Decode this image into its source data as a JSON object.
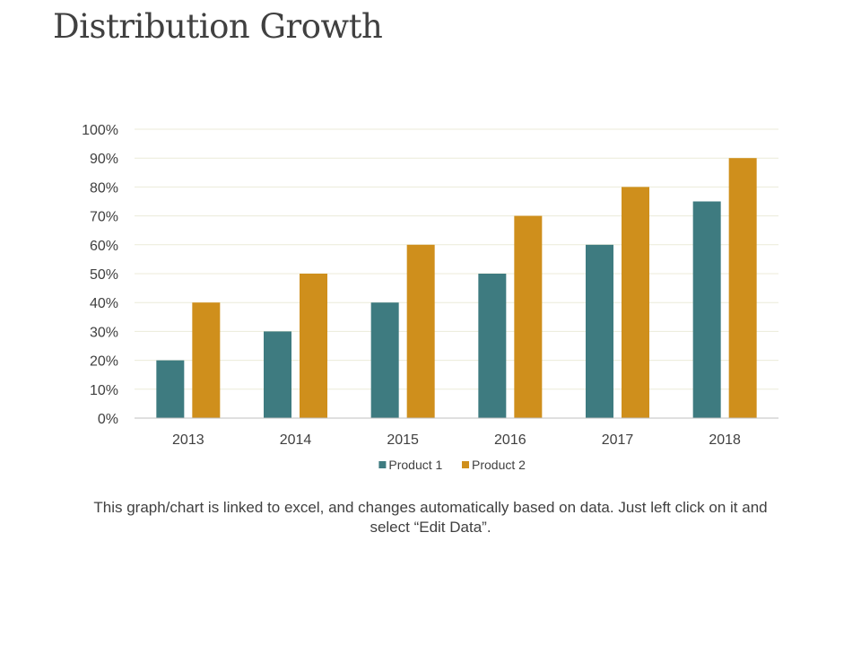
{
  "slide": {
    "title": "Distribution Growth",
    "caption": "This graph/chart is linked to excel, and changes automatically based on data. Just left click on it and select “Edit Data”."
  },
  "chart_data": {
    "type": "bar",
    "title": "",
    "xlabel": "",
    "ylabel": "",
    "categories": [
      "2013",
      "2014",
      "2015",
      "2016",
      "2017",
      "2018"
    ],
    "series": [
      {
        "name": "Product 1",
        "values": [
          20,
          30,
          40,
          50,
          60,
          75
        ],
        "color": "#3e7b80"
      },
      {
        "name": "Product 2",
        "values": [
          40,
          50,
          60,
          70,
          80,
          90
        ],
        "color": "#cf8f1c"
      }
    ],
    "ylim": [
      0,
      100
    ],
    "yticks": [
      0,
      10,
      20,
      30,
      40,
      50,
      60,
      70,
      80,
      90,
      100
    ],
    "ytick_labels": [
      "0%",
      "10%",
      "20%",
      "30%",
      "40%",
      "50%",
      "60%",
      "70%",
      "80%",
      "90%",
      "100%"
    ],
    "grid": true,
    "legend_position": "bottom",
    "colors": {
      "grid": "#ecebd9",
      "axis": "#bfbfbf",
      "text": "#404040"
    }
  }
}
